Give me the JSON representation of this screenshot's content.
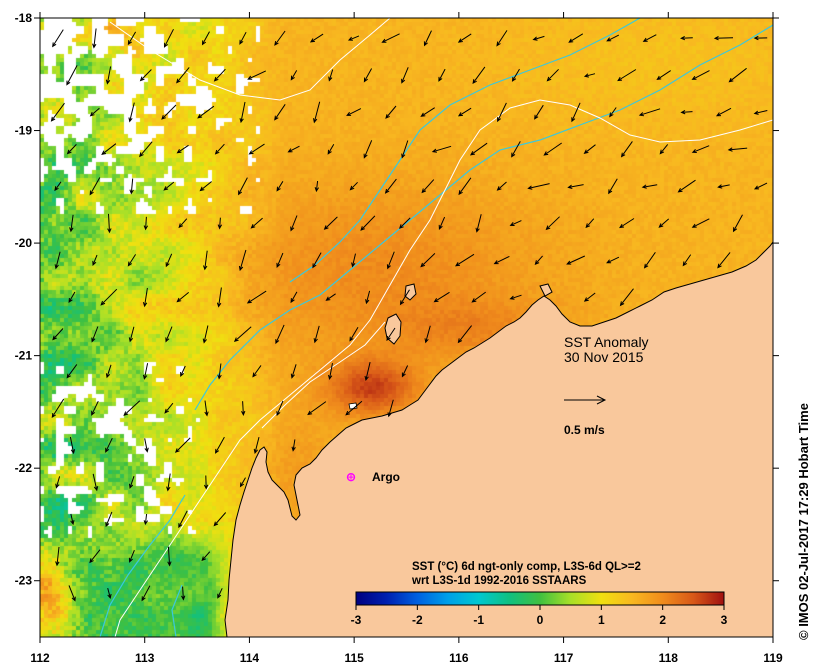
{
  "map": {
    "title": "SST Anomaly",
    "date": "30 Nov 2015",
    "lon_range": [
      112,
      119
    ],
    "lat_range": [
      -23.5,
      -18
    ],
    "lon_ticks": [
      "112",
      "113",
      "114",
      "115",
      "116",
      "117",
      "118",
      "119"
    ],
    "lat_ticks": [
      "-18",
      "-19",
      "-20",
      "-21",
      "-22",
      "-23"
    ],
    "vector_scale": {
      "label": "0.5 m/s"
    },
    "argo": {
      "label": "Argo",
      "lon": 114.97,
      "lat": -22.08
    },
    "colorbar": {
      "caption_line1": "SST (°C) 6d ngt-only comp, L3S-6d QL>=2",
      "caption_line2": "wrt L3S-1d 1992-2016 SSTAARS",
      "range": [
        -3,
        3
      ],
      "ticks": [
        "-3",
        "-2",
        "-1",
        "0",
        "1",
        "2",
        "3"
      ],
      "colors": [
        "#000080",
        "#0020B0",
        "#0060E0",
        "#00A0E8",
        "#00C8D0",
        "#10C080",
        "#40C040",
        "#A8E028",
        "#F0E010",
        "#F8B820",
        "#F08C1C",
        "#D85818",
        "#A01010"
      ]
    },
    "copyright": "© IMOS 02-Jul-2017 17:29 Hobart Time",
    "colors": {
      "land": "#F9C89C",
      "coastline": "#000000",
      "no_data": "#FFFFFF",
      "argo_marker": "#FF00FF",
      "altimetry_contour": "#3CC8DC",
      "sst_contour": "#FFFFFF"
    }
  }
}
